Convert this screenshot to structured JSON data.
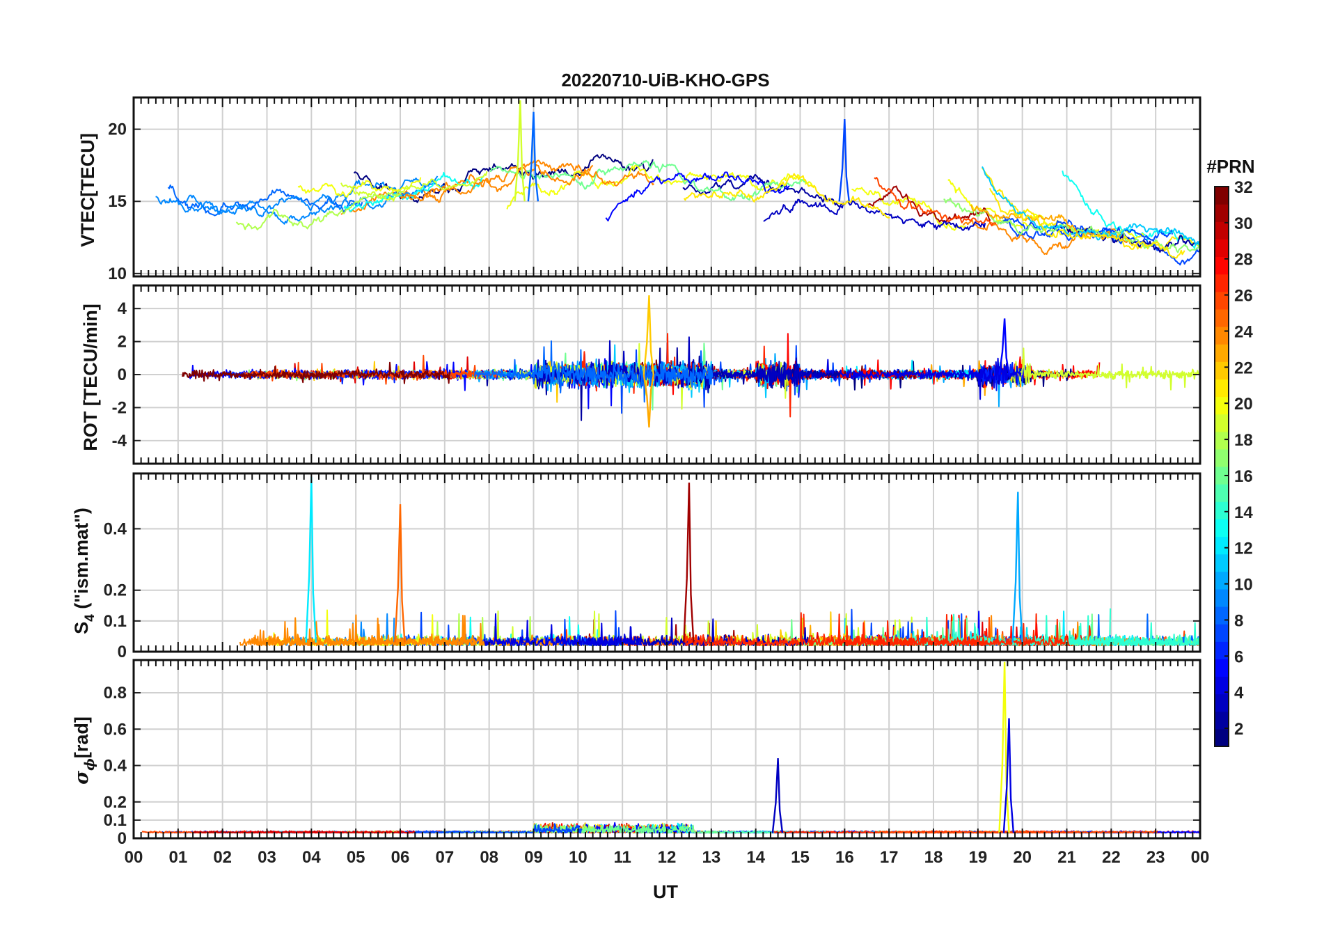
{
  "chart_data": {
    "type": "line",
    "title": "20220710-UiB-KHO-GPS",
    "xlabel": "UT",
    "xlim": [
      0,
      24
    ],
    "x_ticks": [
      "00",
      "01",
      "02",
      "03",
      "04",
      "05",
      "06",
      "07",
      "08",
      "09",
      "10",
      "11",
      "12",
      "13",
      "14",
      "15",
      "16",
      "17",
      "18",
      "19",
      "20",
      "21",
      "22",
      "23",
      "00"
    ],
    "grid": true,
    "colorbar": {
      "label": "#PRN",
      "range": [
        1,
        32
      ],
      "ticks": [
        "2",
        "4",
        "6",
        "8",
        "10",
        "12",
        "14",
        "16",
        "18",
        "20",
        "22",
        "24",
        "26",
        "28",
        "30",
        "32"
      ],
      "colormap": "jet"
    },
    "panels": [
      {
        "id": "vtec",
        "ylabel": "VTEC[TECU]",
        "ylim": [
          9.8,
          22.2
        ],
        "yticks": [
          10,
          15,
          20
        ],
        "ytick_labels": [
          "10",
          "15",
          "20"
        ]
      },
      {
        "id": "rot",
        "ylabel": "ROT [TECU/min]",
        "ylim": [
          -5.4,
          5.4
        ],
        "yticks": [
          -4,
          -2,
          0,
          2,
          4
        ],
        "ytick_labels": [
          "-4",
          "-2",
          "0",
          "2",
          "4"
        ]
      },
      {
        "id": "s4",
        "ylabel_main": "S",
        "ylabel_sub": "4",
        "ylabel_rest": " (\"ism.mat\")",
        "ylim": [
          0,
          0.58
        ],
        "yticks": [
          0,
          0.1,
          0.2,
          0.4
        ],
        "ytick_labels": [
          "0",
          "0.1",
          "0.2",
          "0.4"
        ]
      },
      {
        "id": "sigma",
        "ylabel_main": "σ",
        "ylabel_sub": "ϕ",
        "ylabel_rest": "[rad]",
        "ylim": [
          0,
          0.98
        ],
        "yticks": [
          0,
          0.1,
          0.2,
          0.4,
          0.6,
          0.8
        ],
        "ytick_labels": [
          "0",
          "0.1",
          "0.2",
          "0.4",
          "0.6",
          "0.8"
        ]
      }
    ],
    "notable_peaks": {
      "vtec_max": [
        {
          "x": 8.7,
          "y": 22,
          "prn": 19
        },
        {
          "x": 9.0,
          "y": 21.2,
          "prn": 8
        },
        {
          "x": 16.0,
          "y": 20.7,
          "prn": 7
        }
      ],
      "rot_max": [
        {
          "x": 11.6,
          "y": 4.8,
          "prn": 22
        },
        {
          "x": 11.6,
          "y": -3.2,
          "prn": 23
        },
        {
          "x": 19.6,
          "y": 3.4,
          "prn": 5
        }
      ],
      "s4_max": [
        {
          "x": 4.0,
          "y": 0.57,
          "prn": 12
        },
        {
          "x": 12.5,
          "y": 0.55,
          "prn": 31
        },
        {
          "x": 19.9,
          "y": 0.52,
          "prn": 10
        },
        {
          "x": 6.0,
          "y": 0.48,
          "prn": 25
        }
      ],
      "sigma_max": [
        {
          "x": 19.6,
          "y": 0.97,
          "prn": 20
        },
        {
          "x": 19.7,
          "y": 0.66,
          "prn": 4
        },
        {
          "x": 14.5,
          "y": 0.44,
          "prn": 3
        }
      ]
    }
  }
}
